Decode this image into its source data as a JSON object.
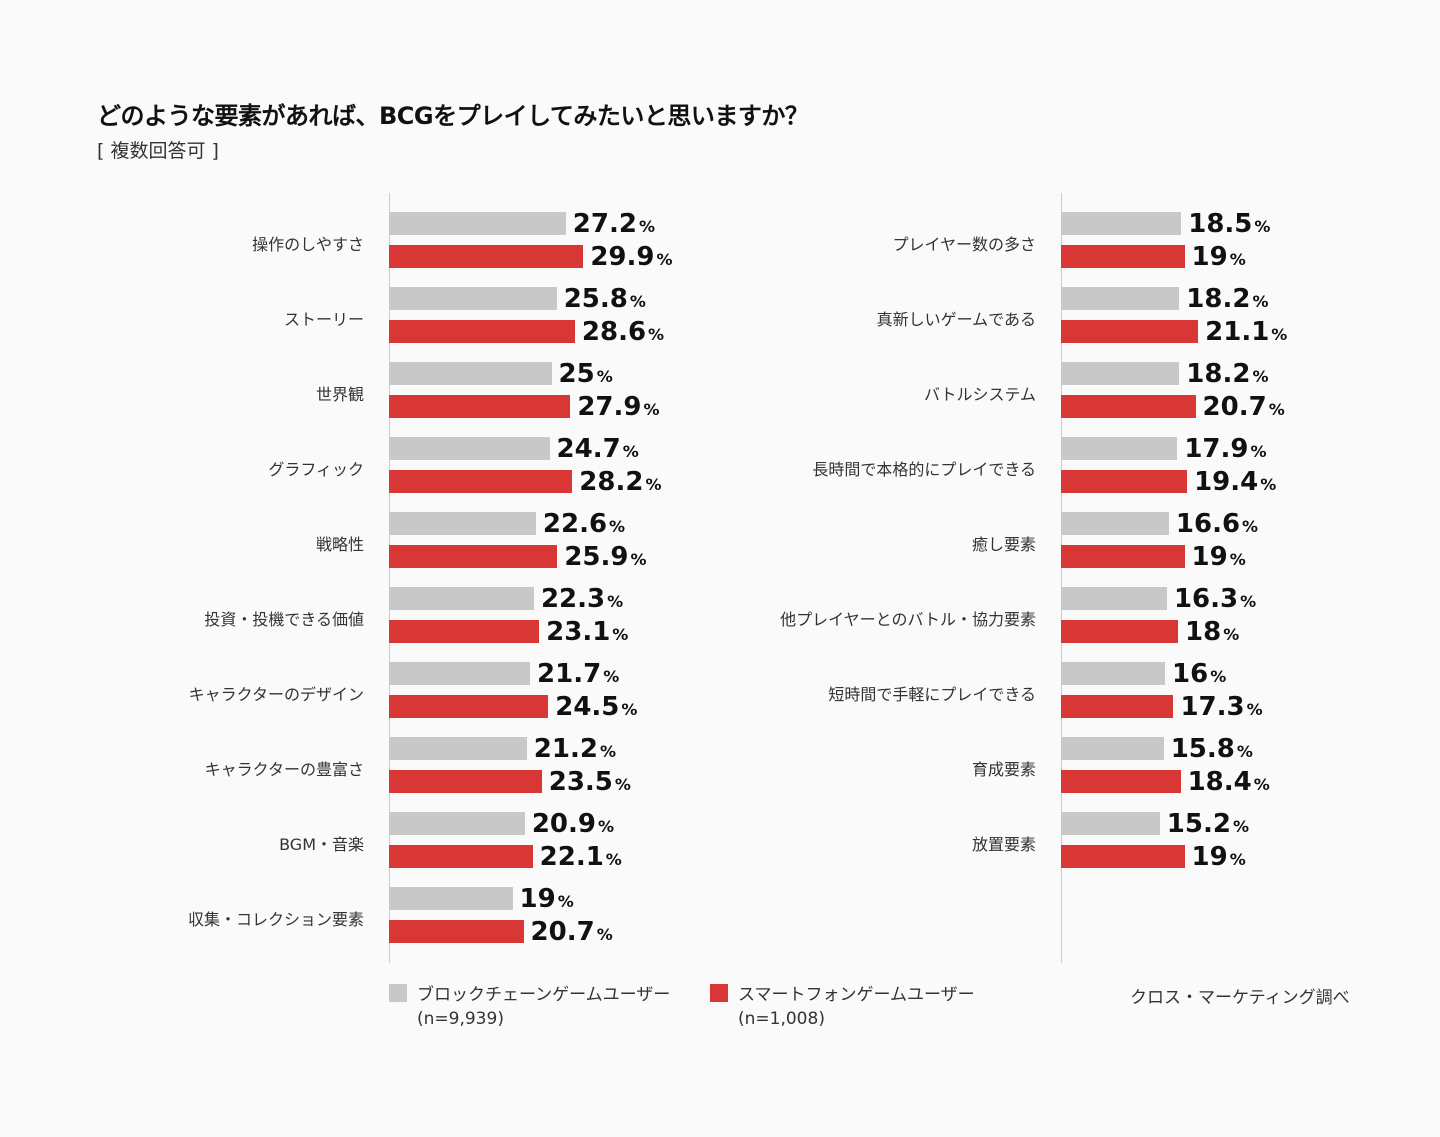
{
  "colors": {
    "blockchain": "#c8c8c8",
    "smartphone": "#d93636"
  },
  "chart_data": {
    "type": "bar",
    "orientation": "horizontal",
    "title": "どのような要素があれば、BCGをプレイしてみたいと思いますか？",
    "subtitle": "[ 複数回答可 ]",
    "unit": "%",
    "series_names": [
      "ブロックチェーンゲームユーザー",
      "スマートフォンゲームユーザー"
    ],
    "panels": [
      {
        "categories": [
          "操作のしやすさ",
          "ストーリー",
          "世界観",
          "グラフィック",
          "戦略性",
          "投資・投機できる価値",
          "キャラクターのデザイン",
          "キャラクターの豊富さ",
          "BGM・音楽",
          "収集・コレクション要素"
        ],
        "series": [
          {
            "name": "ブロックチェーンゲームユーザー",
            "values": [
              27.2,
              25.8,
              25,
              24.7,
              22.6,
              22.3,
              21.7,
              21.2,
              20.9,
              19
            ]
          },
          {
            "name": "スマートフォンゲームユーザー",
            "values": [
              29.9,
              28.6,
              27.9,
              28.2,
              25.9,
              23.1,
              24.5,
              23.5,
              22.1,
              20.7
            ]
          }
        ]
      },
      {
        "categories": [
          "プレイヤー数の多さ",
          "真新しいゲームである",
          "バトルシステム",
          "長時間で本格的にプレイできる",
          "癒し要素",
          "他プレイヤーとのバトル・協力要素",
          "短時間で手軽にプレイできる",
          "育成要素",
          "放置要素"
        ],
        "series": [
          {
            "name": "ブロックチェーンゲームユーザー",
            "values": [
              18.5,
              18.2,
              18.2,
              17.9,
              16.6,
              16.3,
              16,
              15.8,
              15.2
            ]
          },
          {
            "name": "スマートフォンゲームユーザー",
            "values": [
              19,
              21.1,
              20.7,
              19.4,
              19,
              18,
              17.3,
              18.4,
              19
            ]
          }
        ]
      }
    ]
  },
  "legend": [
    {
      "label": "ブロックチェーンゲームユーザー",
      "n": "(n=9,939)"
    },
    {
      "label": "スマートフォンゲームユーザー",
      "n": "(n=1,008)"
    }
  ],
  "source": "クロス・マーケティング調べ"
}
